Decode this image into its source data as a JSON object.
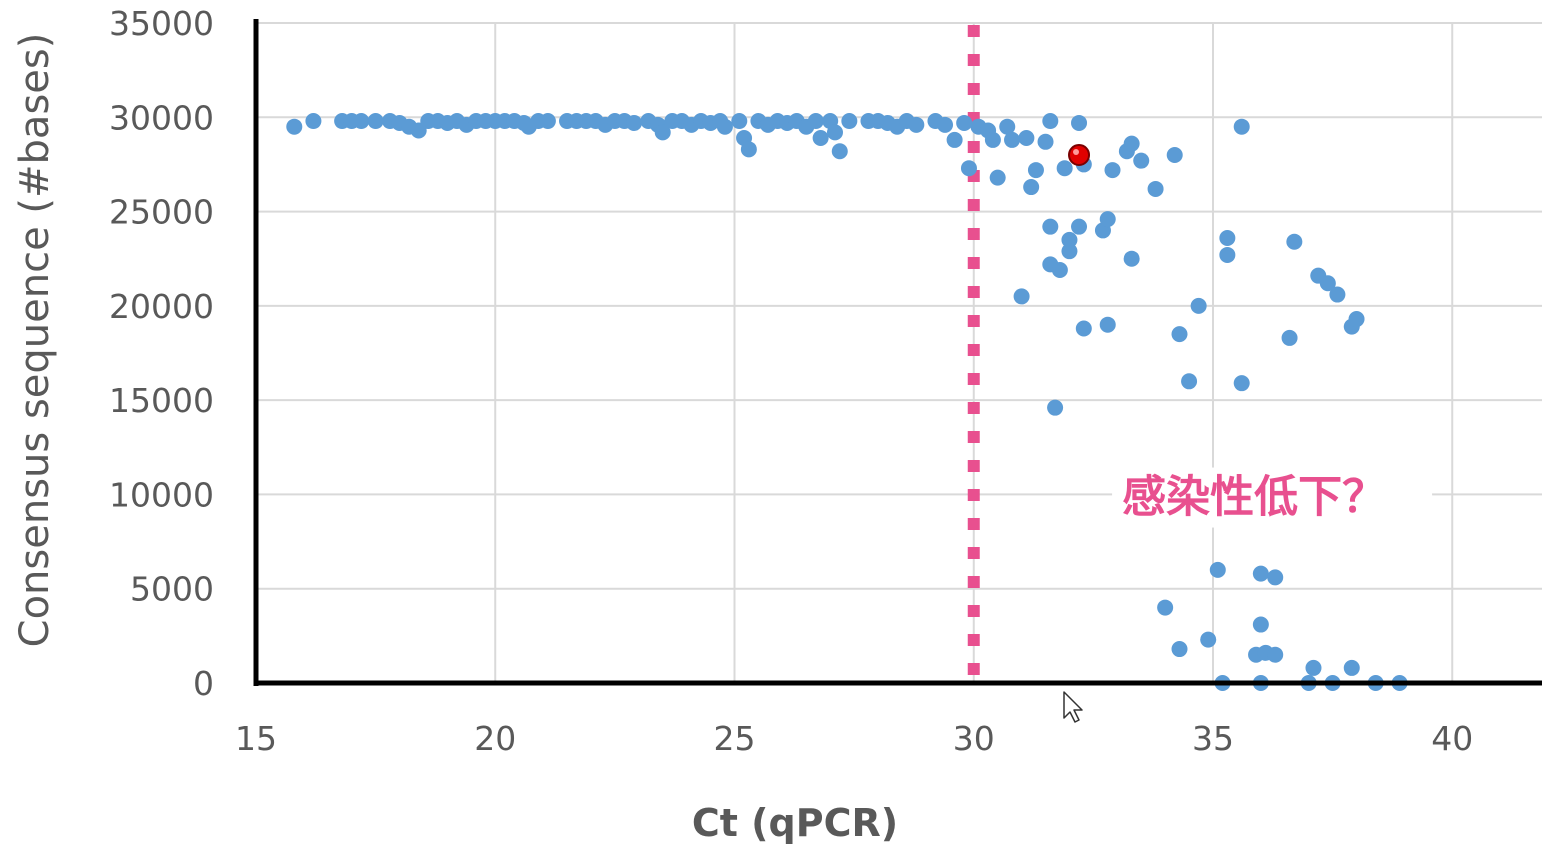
{
  "chart_data": {
    "type": "scatter",
    "title": "",
    "xlabel": "Ct (qPCR)",
    "ylabel": "Consensus sequence (#bases)",
    "xlim": [
      15,
      42
    ],
    "ylim": [
      0,
      35000
    ],
    "xticks": [
      15,
      20,
      25,
      30,
      35,
      40
    ],
    "yticks": [
      0,
      5000,
      10000,
      15000,
      20000,
      25000,
      30000,
      35000
    ],
    "grid": true,
    "legend": "none",
    "point_color": "#5b9bd5",
    "threshold": {
      "x": 30,
      "color": "#e8508f",
      "style": "dotted"
    },
    "annotation": {
      "text": "感染性低下？",
      "x": 33.1,
      "y": 11000,
      "color": "#e8508f"
    },
    "highlight": {
      "x": 32.2,
      "y": 28000,
      "color": "#e00000"
    },
    "series": [
      {
        "points": [
          [
            15.8,
            29500
          ],
          [
            16.2,
            29800
          ],
          [
            16.8,
            29800
          ],
          [
            17.0,
            29800
          ],
          [
            17.2,
            29800
          ],
          [
            17.5,
            29800
          ],
          [
            17.8,
            29800
          ],
          [
            18.0,
            29700
          ],
          [
            18.2,
            29500
          ],
          [
            18.4,
            29300
          ],
          [
            18.6,
            29800
          ],
          [
            18.8,
            29800
          ],
          [
            19.0,
            29700
          ],
          [
            19.2,
            29800
          ],
          [
            19.4,
            29600
          ],
          [
            19.6,
            29800
          ],
          [
            19.8,
            29800
          ],
          [
            20.0,
            29800
          ],
          [
            20.2,
            29800
          ],
          [
            20.4,
            29800
          ],
          [
            20.6,
            29700
          ],
          [
            20.7,
            29500
          ],
          [
            20.9,
            29800
          ],
          [
            21.1,
            29800
          ],
          [
            21.5,
            29800
          ],
          [
            21.7,
            29800
          ],
          [
            21.9,
            29800
          ],
          [
            22.1,
            29800
          ],
          [
            22.3,
            29600
          ],
          [
            22.5,
            29800
          ],
          [
            22.7,
            29800
          ],
          [
            22.9,
            29700
          ],
          [
            23.2,
            29800
          ],
          [
            23.4,
            29600
          ],
          [
            23.5,
            29200
          ],
          [
            23.7,
            29800
          ],
          [
            23.9,
            29800
          ],
          [
            24.1,
            29600
          ],
          [
            24.3,
            29800
          ],
          [
            24.5,
            29700
          ],
          [
            24.7,
            29800
          ],
          [
            24.8,
            29500
          ],
          [
            25.1,
            29800
          ],
          [
            25.2,
            28900
          ],
          [
            25.3,
            28300
          ],
          [
            25.5,
            29800
          ],
          [
            25.7,
            29600
          ],
          [
            25.9,
            29800
          ],
          [
            26.1,
            29700
          ],
          [
            26.3,
            29800
          ],
          [
            26.5,
            29500
          ],
          [
            26.7,
            29800
          ],
          [
            26.8,
            28900
          ],
          [
            27.0,
            29800
          ],
          [
            27.1,
            29200
          ],
          [
            27.2,
            28200
          ],
          [
            27.4,
            29800
          ],
          [
            27.8,
            29800
          ],
          [
            28.0,
            29800
          ],
          [
            28.2,
            29700
          ],
          [
            28.4,
            29500
          ],
          [
            28.6,
            29800
          ],
          [
            28.8,
            29600
          ],
          [
            29.2,
            29800
          ],
          [
            29.4,
            29600
          ],
          [
            29.6,
            28800
          ],
          [
            29.8,
            29700
          ],
          [
            29.9,
            27300
          ],
          [
            30.1,
            29500
          ],
          [
            30.3,
            29300
          ],
          [
            30.4,
            28800
          ],
          [
            30.5,
            26800
          ],
          [
            30.7,
            29500
          ],
          [
            30.8,
            28800
          ],
          [
            31.1,
            28900
          ],
          [
            31.2,
            26300
          ],
          [
            31.3,
            27200
          ],
          [
            31.5,
            28700
          ],
          [
            31.6,
            29800
          ],
          [
            31.6,
            24200
          ],
          [
            31.6,
            22200
          ],
          [
            31.8,
            21900
          ],
          [
            31.9,
            27300
          ],
          [
            32.0,
            23500
          ],
          [
            32.0,
            22900
          ],
          [
            32.2,
            29700
          ],
          [
            32.2,
            24200
          ],
          [
            32.3,
            27500
          ],
          [
            32.3,
            18800
          ],
          [
            32.7,
            24000
          ],
          [
            32.8,
            24600
          ],
          [
            32.8,
            19000
          ],
          [
            32.9,
            27200
          ],
          [
            33.2,
            28200
          ],
          [
            33.3,
            28600
          ],
          [
            33.3,
            22500
          ],
          [
            33.5,
            27700
          ],
          [
            33.8,
            26200
          ],
          [
            34.2,
            28000
          ],
          [
            34.3,
            18500
          ],
          [
            34.5,
            16000
          ],
          [
            34.7,
            20000
          ],
          [
            35.3,
            23600
          ],
          [
            35.3,
            22700
          ],
          [
            35.6,
            29500
          ],
          [
            35.6,
            15900
          ],
          [
            36.6,
            18300
          ],
          [
            36.7,
            23400
          ],
          [
            37.2,
            21600
          ],
          [
            37.4,
            21200
          ],
          [
            37.6,
            20600
          ],
          [
            37.9,
            18900
          ],
          [
            38.0,
            19300
          ],
          [
            31.0,
            20500
          ],
          [
            31.7,
            14600
          ],
          [
            35.1,
            6000
          ],
          [
            36.0,
            5800
          ],
          [
            36.3,
            5600
          ],
          [
            34.0,
            4000
          ],
          [
            34.3,
            1800
          ],
          [
            34.9,
            2300
          ],
          [
            36.0,
            3100
          ],
          [
            35.9,
            1500
          ],
          [
            36.1,
            1600
          ],
          [
            36.3,
            1500
          ],
          [
            35.2,
            0
          ],
          [
            36.0,
            0
          ],
          [
            37.1,
            800
          ],
          [
            37.9,
            800
          ],
          [
            37.0,
            0
          ],
          [
            37.5,
            0
          ],
          [
            38.4,
            0
          ],
          [
            38.9,
            0
          ]
        ]
      }
    ]
  }
}
